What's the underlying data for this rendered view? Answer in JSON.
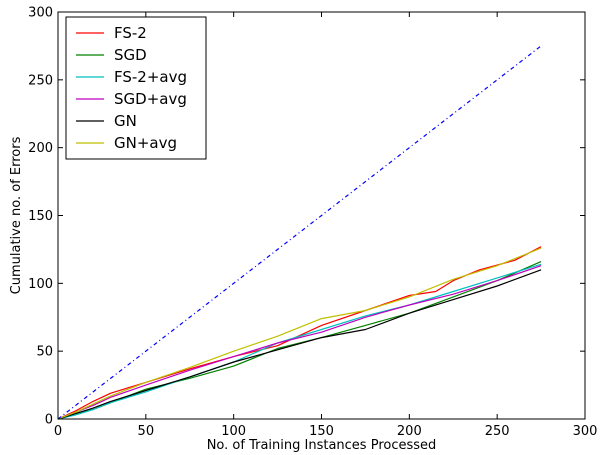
{
  "chart_data": {
    "type": "line",
    "title": "",
    "xlabel": "No. of Training Instances Processed",
    "ylabel": "Cumulative no. of Errors",
    "xlim": [
      0,
      300
    ],
    "ylim": [
      0,
      300
    ],
    "xticks": [
      0,
      50,
      100,
      150,
      200,
      250,
      300
    ],
    "yticks": [
      0,
      50,
      100,
      150,
      200,
      250,
      300
    ],
    "grid": false,
    "legend_position": "top-left",
    "series": [
      {
        "name": "FS-2",
        "color": "#ff0000",
        "style": "solid",
        "x": [
          0,
          10,
          20,
          30,
          50,
          75,
          100,
          125,
          150,
          175,
          200,
          215,
          225,
          240,
          260,
          275
        ],
        "y": [
          0,
          6,
          13,
          19,
          27,
          37,
          46,
          54,
          69,
          80,
          91,
          94,
          102,
          110,
          117,
          127
        ]
      },
      {
        "name": "SGD",
        "color": "#008000",
        "style": "solid",
        "x": [
          0,
          10,
          20,
          30,
          50,
          75,
          100,
          125,
          150,
          175,
          200,
          225,
          250,
          275
        ],
        "y": [
          0,
          4,
          7,
          12,
          22,
          30,
          39,
          52,
          60,
          69,
          78,
          90,
          102,
          116
        ]
      },
      {
        "name": "FS-2+avg",
        "color": "#00bfbf",
        "style": "solid",
        "x": [
          0,
          10,
          20,
          30,
          50,
          75,
          100,
          125,
          150,
          175,
          200,
          225,
          250,
          275
        ],
        "y": [
          0,
          3,
          7,
          12,
          20,
          31,
          42,
          56,
          66,
          76,
          84,
          94,
          104,
          114
        ]
      },
      {
        "name": "SGD+avg",
        "color": "#bf00bf",
        "style": "solid",
        "x": [
          0,
          10,
          20,
          30,
          50,
          75,
          100,
          125,
          150,
          175,
          200,
          225,
          250,
          275
        ],
        "y": [
          0,
          5,
          10,
          16,
          25,
          36,
          46,
          56,
          64,
          75,
          84,
          92,
          102,
          113
        ]
      },
      {
        "name": "GN",
        "color": "#000000",
        "style": "solid",
        "x": [
          0,
          10,
          20,
          30,
          50,
          75,
          100,
          125,
          150,
          175,
          200,
          225,
          250,
          275
        ],
        "y": [
          0,
          4,
          8,
          13,
          21,
          31,
          42,
          51,
          60,
          66,
          78,
          88,
          98,
          110
        ]
      },
      {
        "name": "GN+avg",
        "color": "#bfbf00",
        "style": "solid",
        "x": [
          0,
          10,
          20,
          30,
          50,
          75,
          100,
          125,
          150,
          175,
          200,
          225,
          250,
          275
        ],
        "y": [
          0,
          5,
          11,
          17,
          27,
          38,
          50,
          61,
          74,
          80,
          90,
          103,
          113,
          126
        ]
      },
      {
        "color": "#0000ff",
        "style": "dashdot",
        "x": [
          0,
          275
        ],
        "y": [
          0,
          275
        ]
      }
    ]
  }
}
